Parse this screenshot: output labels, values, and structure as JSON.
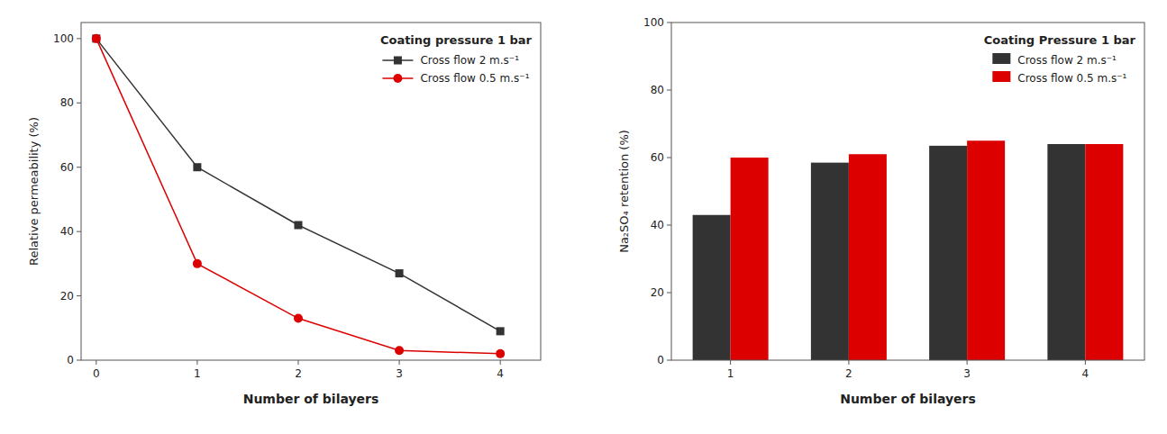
{
  "chart_data": [
    {
      "type": "line",
      "x": [
        0,
        1,
        2,
        3,
        4
      ],
      "series": [
        {
          "name": "Cross flow 2 m.s⁻¹",
          "color": "#333333",
          "marker": "square",
          "values": [
            100,
            60,
            42,
            27,
            9
          ]
        },
        {
          "name": "Cross flow 0.5 m.s⁻¹",
          "color": "#dd0000",
          "marker": "circle",
          "values": [
            100,
            30,
            13,
            3,
            2
          ]
        }
      ],
      "legend_title": "Coating pressure 1 bar",
      "xlabel": "Number of bilayers",
      "ylabel": "Relative permeability (%)",
      "xlim": [
        -0.15,
        4.4
      ],
      "ylim": [
        0,
        105
      ],
      "xticks": [
        0,
        1,
        2,
        3,
        4
      ],
      "yticks": [
        0,
        20,
        40,
        60,
        80,
        100
      ],
      "legend": "upper-right",
      "grid": false
    },
    {
      "type": "bar",
      "categories": [
        "1",
        "2",
        "3",
        "4"
      ],
      "series": [
        {
          "name": "Cross flow 2 m.s⁻¹",
          "color": "#333333",
          "values": [
            43,
            58.5,
            63.5,
            64
          ]
        },
        {
          "name": "Cross flow 0.5 m.s⁻¹",
          "color": "#dd0000",
          "values": [
            60,
            61,
            65,
            64
          ]
        }
      ],
      "legend_title": "Coating Pressure 1 bar",
      "xlabel": "Number of bilayers",
      "ylabel": "Na₂SO₄ retention (%)",
      "ylim": [
        0,
        100
      ],
      "yticks": [
        0,
        20,
        40,
        60,
        80,
        100
      ],
      "legend": "upper-right",
      "grid": false
    }
  ]
}
